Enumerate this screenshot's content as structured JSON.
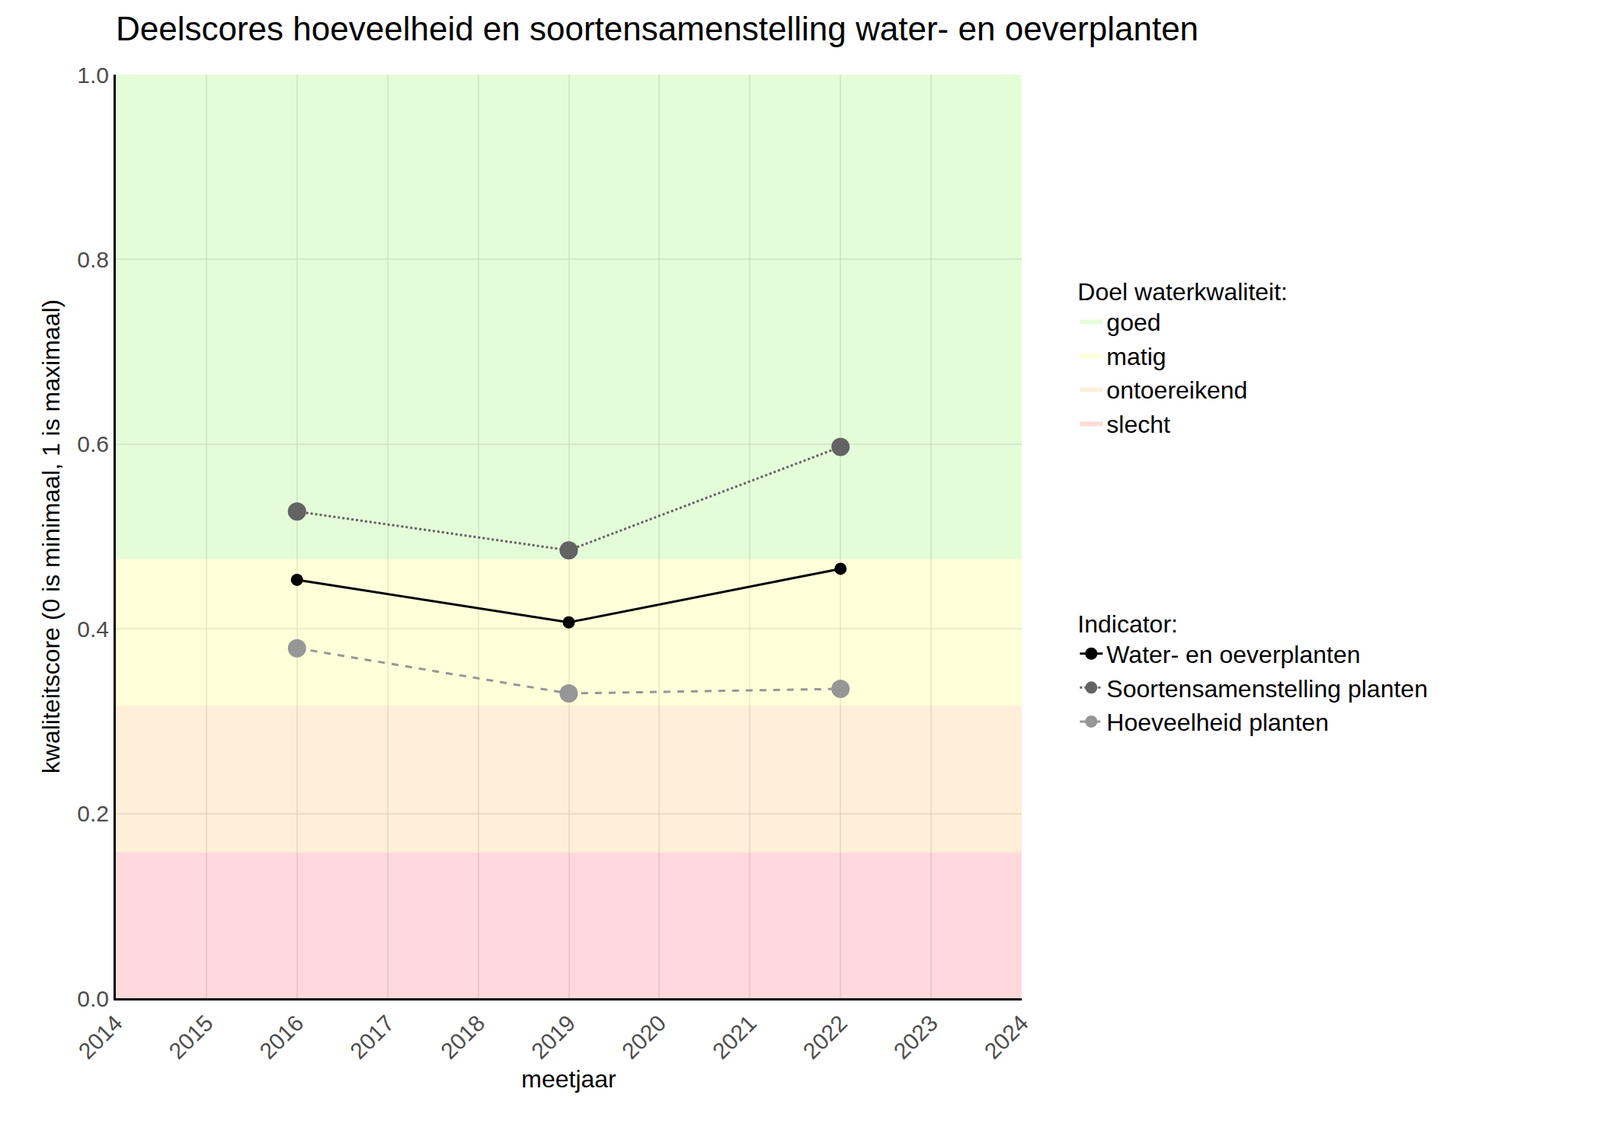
{
  "chart_data": {
    "type": "line",
    "title": "Deelscores hoeveelheid en soortensamenstelling water- en oeverplanten",
    "x_label": "meetjaar",
    "y_label": "kwaliteitscore (0 is minimaal, 1 is maximaal)",
    "xlim": [
      2014,
      2024
    ],
    "xticks": [
      2014,
      2015,
      2016,
      2017,
      2018,
      2019,
      2020,
      2021,
      2022,
      2023,
      2024
    ],
    "ylim": [
      0,
      1
    ],
    "yticks": [
      {
        "value": 0,
        "label": "0.0"
      },
      0.2,
      0.4,
      0.6,
      0.8,
      {
        "value": 1,
        "label": "1.0"
      }
    ],
    "grid": true,
    "legend_title": "Indicator:",
    "x": [
      2016,
      2019,
      2022
    ],
    "series": [
      {
        "name": "Water- en oeverplanten",
        "color": "#000000",
        "line_style": "solid",
        "marker": "circle",
        "values": [
          0.453,
          0.407,
          0.465
        ]
      },
      {
        "name": "Soortensamenstelling planten",
        "color": "#636363",
        "line_style": "dot",
        "marker": "circle",
        "values": [
          0.527,
          0.485,
          0.597
        ]
      },
      {
        "name": "Hoeveelheid planten",
        "color": "#969696",
        "line_style": "dash",
        "marker": "circle",
        "values": [
          0.379,
          0.33,
          0.335
        ]
      }
    ],
    "bands_title": "Doel waterkwaliteit:",
    "bands": [
      {
        "name": "goed",
        "color": "rgba(204,249,179,0.5)",
        "from": 0.475,
        "to": 1
      },
      {
        "name": "matig",
        "color": "rgba(255,255,179,0.5)",
        "from": 0.317,
        "to": 0.475
      },
      {
        "name": "ontoereikend",
        "color": "rgba(255,224,179,0.5)",
        "from": 0.158,
        "to": 0.317
      },
      {
        "name": "slecht",
        "color": "rgba(255,179,184,0.5)",
        "from": 0,
        "to": 0.158
      }
    ]
  }
}
